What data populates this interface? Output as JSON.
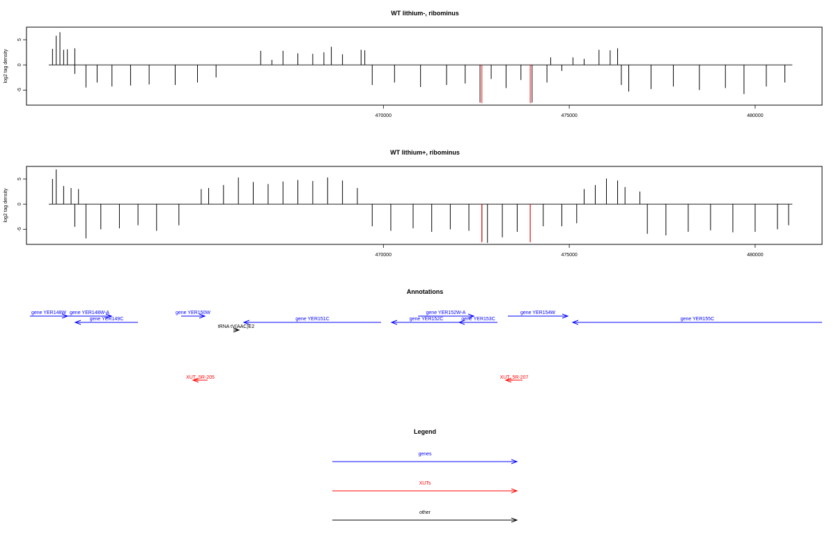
{
  "chart_data": [
    {
      "type": "bar",
      "title": "WT lithium-, ribominus",
      "ylabel": "log2 tag density",
      "xlabel": "",
      "xlim": [
        460400,
        481800
      ],
      "ylim": [
        -8,
        7.5
      ],
      "yticks": [
        -5,
        0,
        5
      ],
      "xticks": [
        470000,
        475000,
        480000
      ],
      "xtick_labels": [
        "470000",
        "475000",
        "480000"
      ],
      "grid": false,
      "series": [
        {
          "values": [
            [
              461100,
              3.2
            ],
            [
              461200,
              5.8
            ],
            [
              461300,
              6.5
            ],
            [
              461400,
              3.0
            ],
            [
              461500,
              3.1
            ],
            [
              461700,
              3.3
            ],
            [
              461700,
              -1.8
            ],
            [
              462000,
              -4.5
            ],
            [
              462300,
              -3.5
            ],
            [
              462700,
              -4.3
            ],
            [
              463200,
              -4.1
            ],
            [
              463700,
              -3.9
            ],
            [
              464400,
              -4.0
            ],
            [
              465000,
              -3.5
            ],
            [
              465500,
              -2.5
            ],
            [
              466700,
              2.8
            ],
            [
              467000,
              1.0
            ],
            [
              467300,
              2.8
            ],
            [
              467700,
              2.3
            ],
            [
              468100,
              2.2
            ],
            [
              468400,
              2.5
            ],
            [
              468600,
              3.6
            ],
            [
              468900,
              2.1
            ],
            [
              469400,
              3.0
            ],
            [
              469500,
              2.9
            ],
            [
              469700,
              -4.0
            ],
            [
              470300,
              -3.5
            ],
            [
              471000,
              -4.4
            ],
            [
              471700,
              -4.0
            ],
            [
              472200,
              -3.7
            ],
            [
              472600,
              -7.5
            ],
            [
              472900,
              -2.8
            ],
            [
              473300,
              -4.6
            ],
            [
              473700,
              -3.0
            ],
            [
              474000,
              -7.5
            ],
            [
              474400,
              -3.5
            ],
            [
              474500,
              1.5
            ],
            [
              474800,
              -1.2
            ],
            [
              475100,
              1.5
            ],
            [
              475400,
              1.2
            ],
            [
              475800,
              3.0
            ],
            [
              476100,
              2.9
            ],
            [
              476300,
              3.3
            ],
            [
              476400,
              -4.0
            ],
            [
              476600,
              -5.3
            ],
            [
              477200,
              -4.8
            ],
            [
              477800,
              -4.3
            ],
            [
              478500,
              -5.0
            ],
            [
              479200,
              -4.6
            ],
            [
              479700,
              -5.8
            ],
            [
              480300,
              -4.3
            ],
            [
              480800,
              -3.5
            ]
          ]
        },
        {
          "name": "",
          "values": [
            [
              472650,
              -7.6
            ],
            [
              473950,
              -7.6
            ]
          ]
        }
      ]
    },
    {
      "type": "bar",
      "title": "WT lithium+, ribominus",
      "ylabel": "log2 tag density",
      "xlabel": "",
      "xlim": [
        460400,
        481800
      ],
      "ylim": [
        -8,
        7.5
      ],
      "yticks": [
        -5,
        0,
        5
      ],
      "xticks": [
        470000,
        475000,
        480000
      ],
      "xtick_labels": [
        "470000",
        "475000",
        "480000"
      ],
      "grid": false,
      "series": [
        {
          "values": [
            [
              461100,
              5.0
            ],
            [
              461200,
              6.9
            ],
            [
              461400,
              3.6
            ],
            [
              461600,
              3.2
            ],
            [
              461800,
              3.0
            ],
            [
              461700,
              -4.5
            ],
            [
              462000,
              -6.8
            ],
            [
              462400,
              -5.0
            ],
            [
              462900,
              -4.8
            ],
            [
              463400,
              -4.2
            ],
            [
              463900,
              -5.3
            ],
            [
              464500,
              -4.2
            ],
            [
              465100,
              3.0
            ],
            [
              465300,
              3.2
            ],
            [
              465700,
              3.8
            ],
            [
              466100,
              5.3
            ],
            [
              466500,
              4.4
            ],
            [
              466900,
              4.0
            ],
            [
              467300,
              4.5
            ],
            [
              467700,
              4.8
            ],
            [
              468100,
              4.6
            ],
            [
              468500,
              5.3
            ],
            [
              468900,
              4.7
            ],
            [
              469300,
              3.2
            ],
            [
              469700,
              -4.4
            ],
            [
              470200,
              -5.3
            ],
            [
              470800,
              -4.8
            ],
            [
              471300,
              -5.5
            ],
            [
              471800,
              -5.0
            ],
            [
              472300,
              -5.3
            ],
            [
              472650,
              -7.4
            ],
            [
              472800,
              -7.7
            ],
            [
              473200,
              -6.6
            ],
            [
              473600,
              -5.5
            ],
            [
              473950,
              -7.4
            ],
            [
              474300,
              -4.4
            ],
            [
              474800,
              -4.4
            ],
            [
              475200,
              -3.8
            ],
            [
              475400,
              3.0
            ],
            [
              475700,
              3.8
            ],
            [
              476000,
              5.1
            ],
            [
              476300,
              4.7
            ],
            [
              476500,
              3.4
            ],
            [
              476900,
              2.5
            ],
            [
              477100,
              -5.9
            ],
            [
              477600,
              -6.2
            ],
            [
              478200,
              -5.5
            ],
            [
              478800,
              -5.2
            ],
            [
              479400,
              -5.6
            ],
            [
              480000,
              -5.5
            ],
            [
              480600,
              -5.0
            ],
            [
              480900,
              -4.2
            ]
          ]
        },
        {
          "name": "",
          "values": [
            [
              472650,
              -7.6
            ],
            [
              473950,
              -7.6
            ]
          ]
        }
      ]
    }
  ],
  "annotations": {
    "title": "Annotations",
    "genes": [
      {
        "label": "gene YER148W",
        "x1": 43,
        "x2": 97,
        "dir": "right",
        "row": 1
      },
      {
        "label": "gene YER148W-A",
        "x1": 97,
        "x2": 160,
        "dir": "right",
        "row": 1
      },
      {
        "label": "gene YER149C",
        "x1": 108,
        "x2": 198,
        "dir": "left",
        "row": 2
      },
      {
        "label": "gene YER150W",
        "x1": 260,
        "x2": 294,
        "dir": "right",
        "row": 1
      },
      {
        "label": "gene YER151C",
        "x1": 350,
        "x2": 547,
        "dir": "left",
        "row": 2
      },
      {
        "label": "gene YER152W-A",
        "x1": 600,
        "x2": 680,
        "dir": "right",
        "row": 1
      },
      {
        "label": "gene YER152C",
        "x1": 562,
        "x2": 662,
        "dir": "left",
        "row": 2
      },
      {
        "label": "gene YER153C",
        "x1": 659,
        "x2": 714,
        "dir": "left",
        "row": 2
      },
      {
        "label": "gene YER154W",
        "x1": 729,
        "x2": 815,
        "dir": "right",
        "row": 1
      },
      {
        "label": "gene YER155C",
        "x1": 822,
        "x2": 1180,
        "dir": "left",
        "row": 2
      }
    ],
    "other": [
      {
        "label": "tRNA tV(AAC)E2",
        "x1": 335,
        "x2": 343,
        "dir": "right"
      }
    ],
    "xuts": [
      {
        "label": "XUT_5R-205",
        "x1": 277,
        "x2": 298,
        "dir": "left"
      },
      {
        "label": "XUT_5R-207",
        "x1": 726,
        "x2": 750,
        "dir": "left"
      }
    ]
  },
  "legend": {
    "title": "Legend",
    "items": [
      {
        "label": "genes",
        "color": "#0000ff"
      },
      {
        "label": "XUTs",
        "color": "#ff0000"
      },
      {
        "label": "other",
        "color": "#000000"
      }
    ]
  },
  "colors": {
    "gene": "#0000ff",
    "xut": "#ff0000",
    "other": "#000000",
    "signal": "#000000",
    "marker": "#ff0000"
  }
}
